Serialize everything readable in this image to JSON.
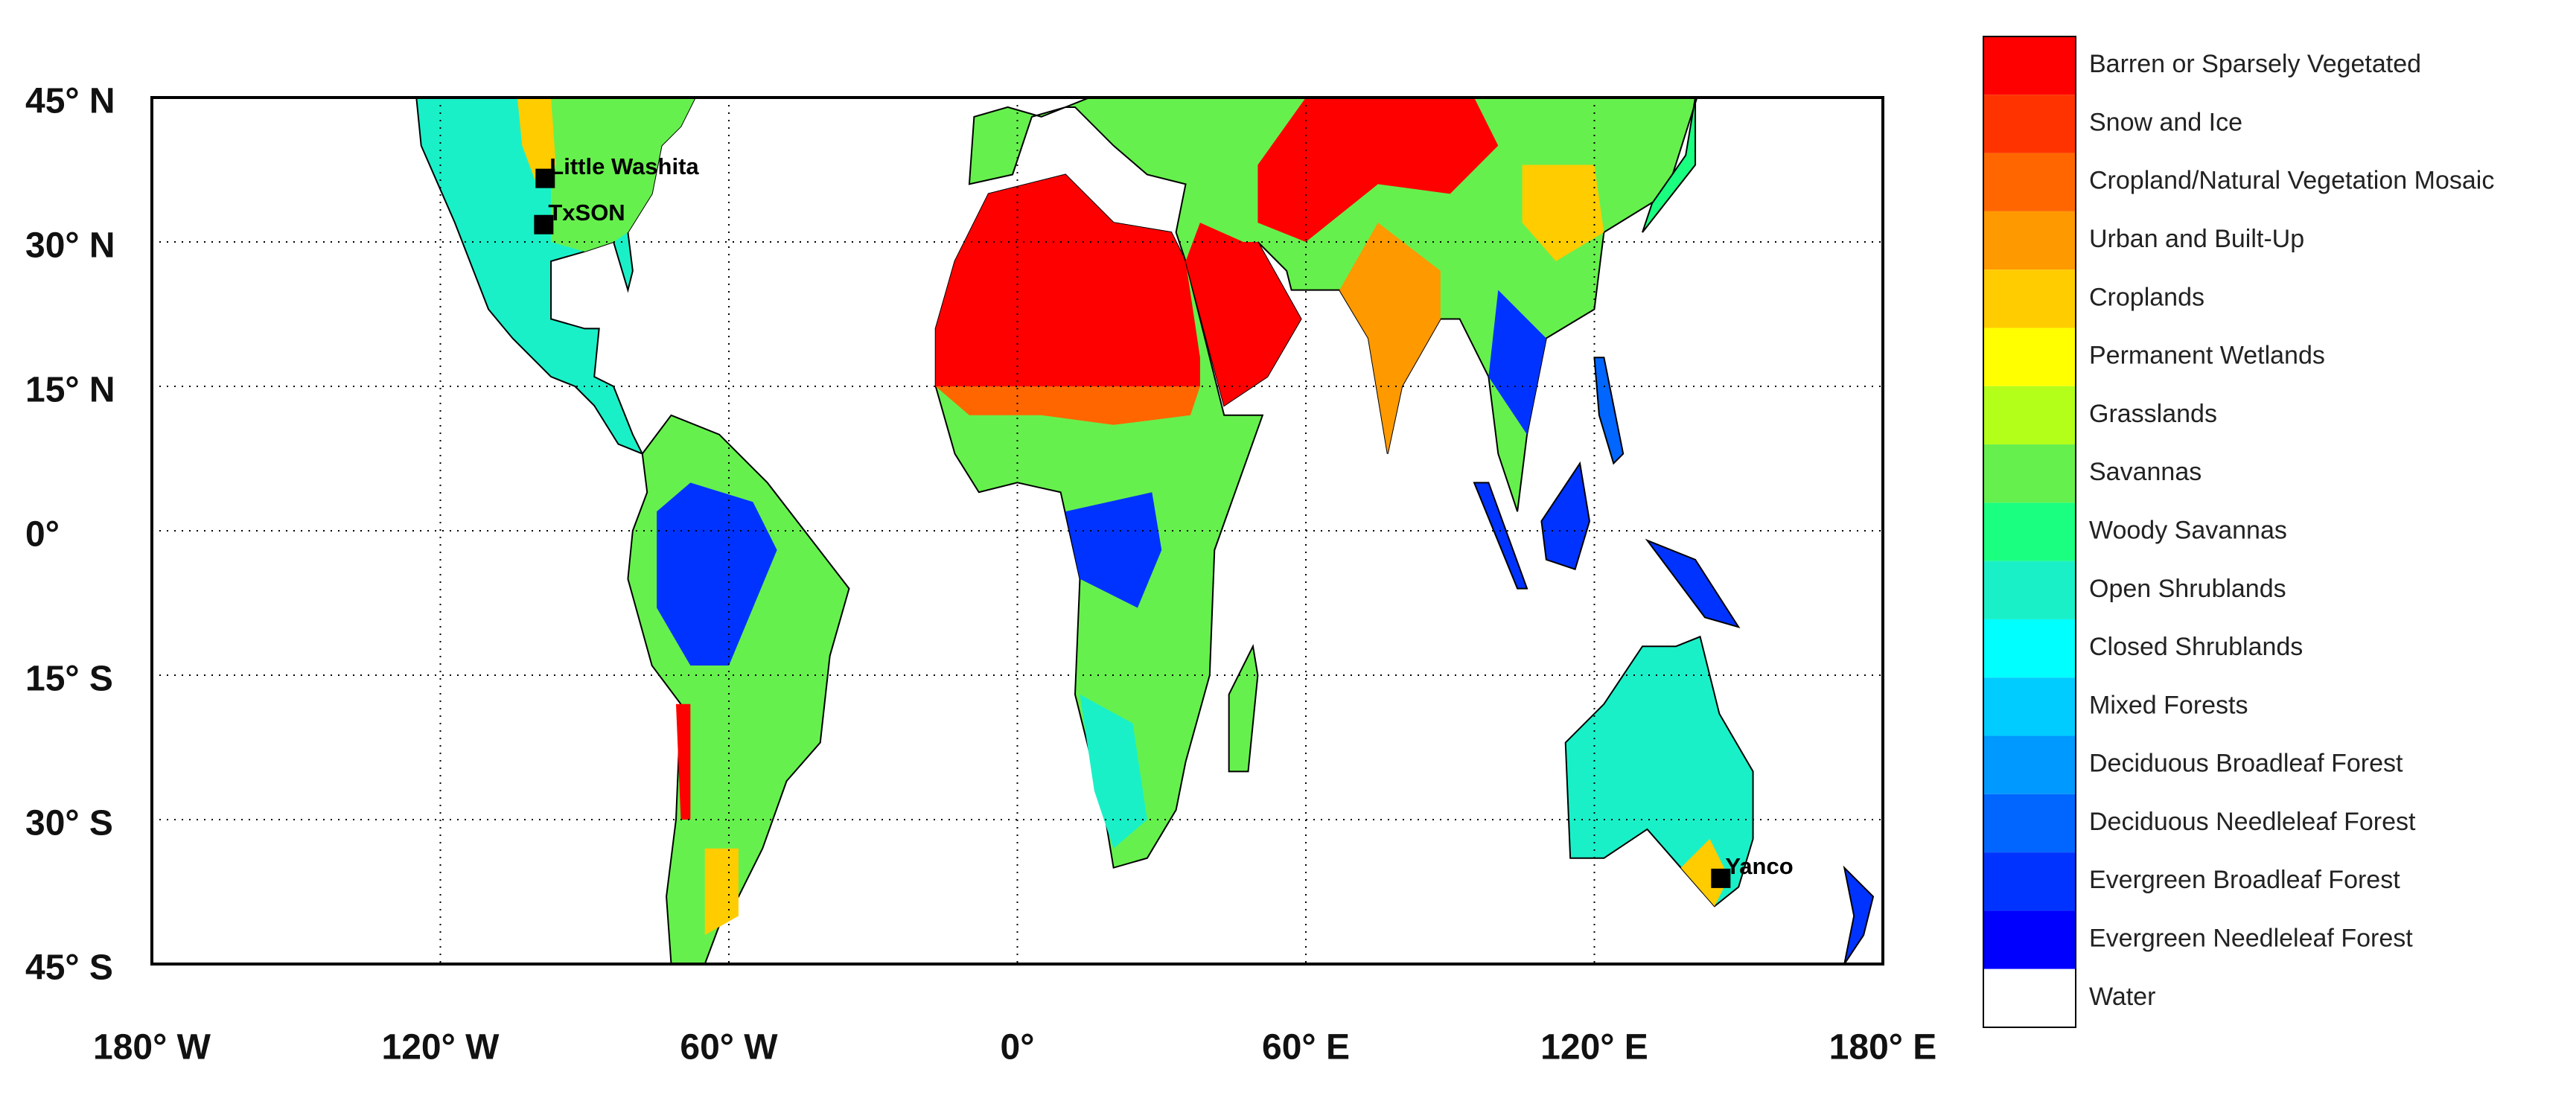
{
  "map": {
    "type": "map",
    "xlim": [
      -180,
      180
    ],
    "ylim": [
      -45,
      45
    ],
    "xticks": [
      {
        "value": -180,
        "label": "180° W"
      },
      {
        "value": -120,
        "label": "120° W"
      },
      {
        "value": -60,
        "label": "60° W"
      },
      {
        "value": 0,
        "label": "0°"
      },
      {
        "value": 60,
        "label": "60° E"
      },
      {
        "value": 120,
        "label": "120° E"
      },
      {
        "value": 180,
        "label": "180° E"
      }
    ],
    "yticks": [
      {
        "value": 45,
        "label": "45° N"
      },
      {
        "value": 30,
        "label": "30° N"
      },
      {
        "value": 15,
        "label": "15° N"
      },
      {
        "value": 0,
        "label": "0°"
      },
      {
        "value": -15,
        "label": "15° S"
      },
      {
        "value": -30,
        "label": "30° S"
      },
      {
        "value": -45,
        "label": "45° S"
      }
    ],
    "grid": true,
    "sites": [
      {
        "name": "Little Washita",
        "lon": -98.2,
        "lat": 36.6
      },
      {
        "name": "TxSON",
        "lon": -98.5,
        "lat": 31.8
      },
      {
        "name": "Yanco",
        "lon": 146.3,
        "lat": -36.1
      }
    ],
    "legend": {
      "classes": [
        {
          "name": "Barren or Sparsely Vegetated",
          "color": "#ff0000"
        },
        {
          "name": "Snow and Ice",
          "color": "#ff3300"
        },
        {
          "name": "Cropland/Natural Vegetation Mosaic",
          "color": "#ff6600"
        },
        {
          "name": "Urban and Built-Up",
          "color": "#ff9900"
        },
        {
          "name": "Croplands",
          "color": "#ffcc00"
        },
        {
          "name": "Permanent Wetlands",
          "color": "#ffff00"
        },
        {
          "name": "Grasslands",
          "color": "#b3ff1a"
        },
        {
          "name": "Savannas",
          "color": "#66f04d"
        },
        {
          "name": "Woody Savannas",
          "color": "#1aff80"
        },
        {
          "name": "Open Shrublands",
          "color": "#1af0c8"
        },
        {
          "name": "Closed Shrublands",
          "color": "#00ffff"
        },
        {
          "name": "Mixed Forests",
          "color": "#00ccff"
        },
        {
          "name": "Deciduous Broadleaf Forest",
          "color": "#0099ff"
        },
        {
          "name": "Deciduous Needleleaf Forest",
          "color": "#0066ff"
        },
        {
          "name": "Evergreen Broadleaf Forest",
          "color": "#0033ff"
        },
        {
          "name": "Evergreen Needleleaf Forest",
          "color": "#0000ff"
        },
        {
          "name": "Water",
          "color": "#ffffff"
        }
      ]
    }
  }
}
